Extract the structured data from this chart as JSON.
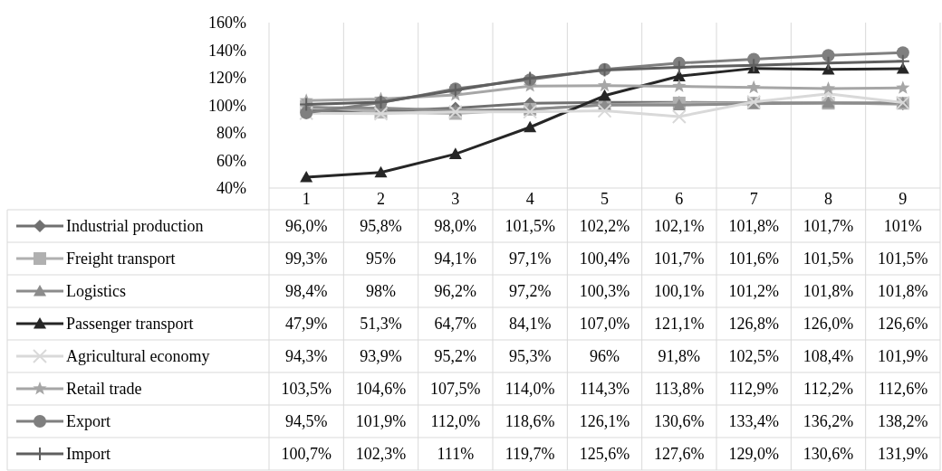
{
  "chart_data": {
    "type": "line",
    "categories": [
      "1",
      "2",
      "3",
      "4",
      "5",
      "6",
      "7",
      "8",
      "9"
    ],
    "ylim": [
      40,
      160
    ],
    "yticks": [
      {
        "value": 40,
        "label": "40%"
      },
      {
        "value": 60,
        "label": "60%"
      },
      {
        "value": 80,
        "label": "80%"
      },
      {
        "value": 100,
        "label": "100%"
      },
      {
        "value": 120,
        "label": "120%"
      },
      {
        "value": 140,
        "label": "140%"
      },
      {
        "value": 160,
        "label": "160%"
      }
    ],
    "grid": "x",
    "legend": "bottom left",
    "data_labels": true,
    "series": [
      {
        "name": "Industrial production",
        "color": "#707070",
        "marker": "diamond",
        "values": [
          96.0,
          95.8,
          98.0,
          101.5,
          102.2,
          102.1,
          101.8,
          101.7,
          101
        ],
        "value_labels": [
          "96,0%",
          "95,8%",
          "98,0%",
          "101,5%",
          "102,2%",
          "102,1%",
          "101,8%",
          "101,7%",
          "101%"
        ]
      },
      {
        "name": "Freight transport",
        "color": "#b0b0b0",
        "marker": "square",
        "values": [
          99.3,
          95,
          94.1,
          97.1,
          100.4,
          101.7,
          101.6,
          101.5,
          101.5
        ],
        "value_labels": [
          "99,3%",
          "95%",
          "94,1%",
          "97,1%",
          "100,4%",
          "101,7%",
          "101,6%",
          "101,5%",
          "101,5%"
        ]
      },
      {
        "name": "Logistics",
        "color": "#8c8c8c",
        "marker": "triangle",
        "values": [
          98.4,
          98,
          96.2,
          97.2,
          100.3,
          100.1,
          101.2,
          101.8,
          101.8
        ],
        "value_labels": [
          "98,4%",
          "98%",
          "96,2%",
          "97,2%",
          "100,3%",
          "100,1%",
          "101,2%",
          "101,8%",
          "101,8%"
        ]
      },
      {
        "name": "Passenger transport",
        "color": "#262626",
        "marker": "triangle",
        "values": [
          47.9,
          51.3,
          64.7,
          84.1,
          107.0,
          121.1,
          126.8,
          126.0,
          126.6
        ],
        "value_labels": [
          "47,9%",
          "51,3%",
          "64,7%",
          "84,1%",
          "107,0%",
          "121,1%",
          "126,8%",
          "126,0%",
          "126,6%"
        ]
      },
      {
        "name": "Agricultural economy",
        "color": "#d9d9d9",
        "marker": "x",
        "values": [
          94.3,
          93.9,
          95.2,
          95.3,
          96,
          91.8,
          102.5,
          108.4,
          101.9
        ],
        "value_labels": [
          "94,3%",
          "93,9%",
          "95,2%",
          "95,3%",
          "96%",
          "91,8%",
          "102,5%",
          "108,4%",
          "101,9%"
        ]
      },
      {
        "name": "Retail trade",
        "color": "#a6a6a6",
        "marker": "star",
        "values": [
          103.5,
          104.6,
          107.5,
          114.0,
          114.3,
          113.8,
          112.9,
          112.2,
          112.6
        ],
        "value_labels": [
          "103,5%",
          "104,6%",
          "107,5%",
          "114,0%",
          "114,3%",
          "113,8%",
          "112,9%",
          "112,2%",
          "112,6%"
        ]
      },
      {
        "name": "Export",
        "color": "#7f7f7f",
        "marker": "circle",
        "values": [
          94.5,
          101.9,
          112.0,
          118.6,
          126.1,
          130.6,
          133.4,
          136.2,
          138.2
        ],
        "value_labels": [
          "94,5%",
          "101,9%",
          "112,0%",
          "118,6%",
          "126,1%",
          "130,6%",
          "133,4%",
          "136,2%",
          "138,2%"
        ]
      },
      {
        "name": "Import",
        "color": "#5f5f5f",
        "marker": "cross",
        "values": [
          100.7,
          102.3,
          111,
          119.7,
          125.6,
          127.6,
          129.0,
          130.6,
          131.9
        ],
        "value_labels": [
          "100,7%",
          "102,3%",
          "111%",
          "119,7%",
          "125,6%",
          "127,6%",
          "129,0%",
          "130,6%",
          "131,9%"
        ]
      }
    ]
  }
}
